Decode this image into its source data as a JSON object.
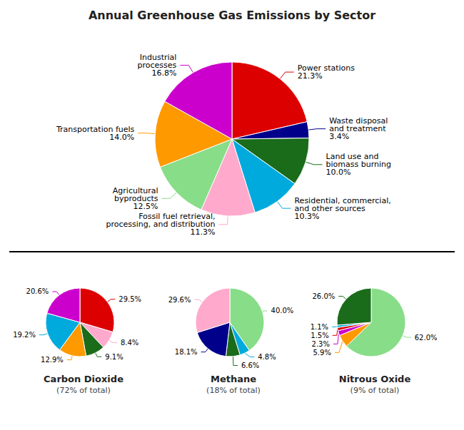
{
  "chart_data": [
    {
      "type": "pie",
      "title": "Annual Greenhouse Gas Emissions by Sector",
      "categories": [
        "Power stations",
        "Waste disposal\nand treatment",
        "Land use and\nbiomass burning",
        "Residential, commercial,\nand other sources",
        "Fossil fuel retrieval,\nprocessing, and distribution",
        "Agricultural\nbyproducts",
        "Transportation fuels",
        "Industrial\nprocesses"
      ],
      "values": [
        21.3,
        3.4,
        10.0,
        10.3,
        11.3,
        12.5,
        14.0,
        16.8
      ],
      "value_labels": [
        "21.3%",
        "3.4%",
        "10.0%",
        "10.3%",
        "11.3%",
        "12.5%",
        "14.0%",
        "16.8%"
      ],
      "colors": [
        "#dd0000",
        "#00008b",
        "#1a6b1a",
        "#00aadd",
        "#ffaacc",
        "#88dd88",
        "#ff9900",
        "#cc00cc"
      ],
      "data_labels": true
    },
    {
      "type": "pie",
      "title": "Carbon Dioxide",
      "subtitle": "(72% of total)",
      "values": [
        29.5,
        8.4,
        9.1,
        12.9,
        19.2,
        20.6
      ],
      "value_labels": [
        "29.5%",
        "8.4%",
        "9.1%",
        "12.9%",
        "19.2%",
        "20.6%"
      ],
      "colors": [
        "#dd0000",
        "#ffaacc",
        "#1a6b1a",
        "#ff9900",
        "#00aadd",
        "#cc00cc"
      ],
      "data_labels": true
    },
    {
      "type": "pie",
      "title": "Methane",
      "subtitle": "(18% of total)",
      "values": [
        40.0,
        4.8,
        6.6,
        18.1,
        29.6
      ],
      "value_labels": [
        "40.0%",
        "4.8%",
        "6.6%",
        "18.1%",
        "29.6%"
      ],
      "colors": [
        "#88dd88",
        "#00aadd",
        "#1a6b1a",
        "#00008b",
        "#ffaacc"
      ],
      "data_labels": true
    },
    {
      "type": "pie",
      "title": "Nitrous Oxide",
      "subtitle": "(9% of total)",
      "values": [
        62.0,
        5.9,
        2.3,
        1.5,
        1.1,
        26.0
      ],
      "value_labels": [
        "62.0%",
        "5.9%",
        "2.3%",
        "1.5%",
        "1.1%",
        "26.0%"
      ],
      "colors": [
        "#88dd88",
        "#ff9900",
        "#cc00cc",
        "#dd0000",
        "#00aadd",
        "#1a6b1a"
      ],
      "data_labels": true
    }
  ]
}
